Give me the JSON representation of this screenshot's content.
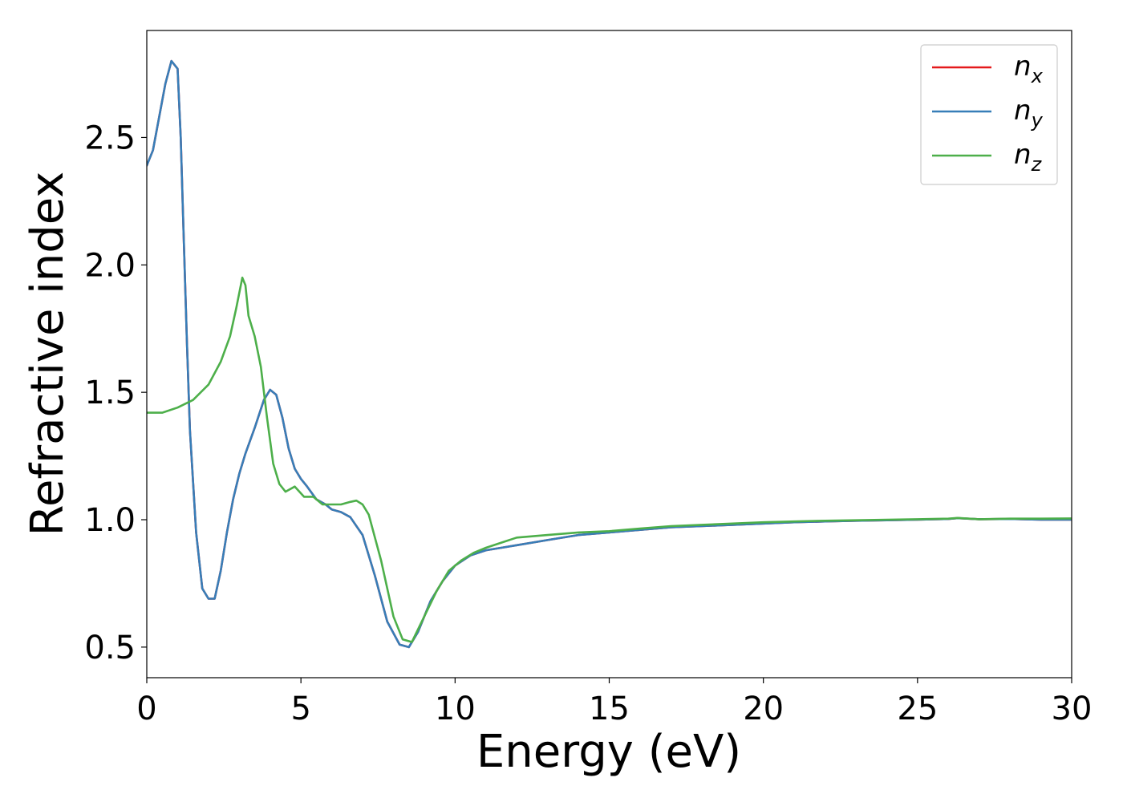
{
  "chart_data": {
    "type": "line",
    "title": "",
    "xlabel": "Energy (eV)",
    "ylabel": "Refractive index",
    "xlim": [
      0,
      30
    ],
    "ylim": [
      0.38,
      2.92
    ],
    "xticks": [
      0,
      5,
      10,
      15,
      20,
      25,
      30
    ],
    "xtick_labels": [
      "0",
      "5",
      "10",
      "15",
      "20",
      "25",
      "30"
    ],
    "yticks": [
      0.5,
      1.0,
      1.5,
      2.0,
      2.5
    ],
    "ytick_labels": [
      "0.5",
      "1.0",
      "1.5",
      "2.0",
      "2.5"
    ],
    "grid": false,
    "legend_position": "top-right",
    "series": [
      {
        "name": "n",
        "subscript": "x",
        "color": "#e41a1c",
        "x": [
          0,
          0.2,
          0.4,
          0.6,
          0.8,
          1.0,
          1.1,
          1.2,
          1.3,
          1.4,
          1.6,
          1.8,
          2.0,
          2.2,
          2.4,
          2.6,
          2.8,
          3.0,
          3.2,
          3.5,
          3.8,
          4.0,
          4.2,
          4.4,
          4.6,
          4.8,
          5.0,
          5.2,
          5.5,
          5.8,
          6.0,
          6.3,
          6.6,
          7.0,
          7.4,
          7.8,
          8.2,
          8.5,
          8.8,
          9.2,
          9.6,
          10.0,
          10.5,
          11.0,
          11.5,
          12.0,
          13.0,
          14.0,
          15.0,
          16.0,
          17.0,
          18.0,
          19.0,
          20.0,
          21.0,
          22.0,
          23.0,
          24.0,
          25.0,
          26.0,
          26.3,
          27.0,
          28.0,
          29.0,
          30.0
        ],
        "y": [
          2.39,
          2.45,
          2.58,
          2.71,
          2.8,
          2.77,
          2.5,
          2.1,
          1.7,
          1.35,
          0.95,
          0.73,
          0.69,
          0.69,
          0.8,
          0.95,
          1.08,
          1.18,
          1.26,
          1.36,
          1.47,
          1.51,
          1.49,
          1.4,
          1.28,
          1.2,
          1.16,
          1.13,
          1.08,
          1.06,
          1.04,
          1.03,
          1.01,
          0.94,
          0.78,
          0.6,
          0.51,
          0.5,
          0.56,
          0.68,
          0.76,
          0.82,
          0.86,
          0.88,
          0.89,
          0.9,
          0.92,
          0.94,
          0.95,
          0.96,
          0.97,
          0.975,
          0.98,
          0.985,
          0.99,
          0.993,
          0.996,
          0.998,
          1.0,
          1.003,
          1.006,
          1.002,
          1.003,
          1.0,
          1.0
        ]
      },
      {
        "name": "n",
        "subscript": "y",
        "color": "#377eb8",
        "x": [
          0,
          0.2,
          0.4,
          0.6,
          0.8,
          1.0,
          1.1,
          1.2,
          1.3,
          1.4,
          1.6,
          1.8,
          2.0,
          2.2,
          2.4,
          2.6,
          2.8,
          3.0,
          3.2,
          3.5,
          3.8,
          4.0,
          4.2,
          4.4,
          4.6,
          4.8,
          5.0,
          5.2,
          5.5,
          5.8,
          6.0,
          6.3,
          6.6,
          7.0,
          7.4,
          7.8,
          8.2,
          8.5,
          8.8,
          9.2,
          9.6,
          10.0,
          10.5,
          11.0,
          11.5,
          12.0,
          13.0,
          14.0,
          15.0,
          16.0,
          17.0,
          18.0,
          19.0,
          20.0,
          21.0,
          22.0,
          23.0,
          24.0,
          25.0,
          26.0,
          26.3,
          27.0,
          28.0,
          29.0,
          30.0
        ],
        "y": [
          2.39,
          2.45,
          2.58,
          2.71,
          2.8,
          2.77,
          2.5,
          2.1,
          1.7,
          1.35,
          0.95,
          0.73,
          0.69,
          0.69,
          0.8,
          0.95,
          1.08,
          1.18,
          1.26,
          1.36,
          1.47,
          1.51,
          1.49,
          1.4,
          1.28,
          1.2,
          1.16,
          1.13,
          1.08,
          1.06,
          1.04,
          1.03,
          1.01,
          0.94,
          0.78,
          0.6,
          0.51,
          0.5,
          0.56,
          0.68,
          0.76,
          0.82,
          0.86,
          0.88,
          0.89,
          0.9,
          0.92,
          0.94,
          0.95,
          0.96,
          0.97,
          0.975,
          0.98,
          0.985,
          0.99,
          0.993,
          0.996,
          0.998,
          1.0,
          1.003,
          1.006,
          1.002,
          1.003,
          1.0,
          1.0
        ]
      },
      {
        "name": "n",
        "subscript": "z",
        "color": "#4daf4a",
        "x": [
          0,
          0.5,
          1.0,
          1.5,
          2.0,
          2.4,
          2.7,
          2.9,
          3.1,
          3.2,
          3.3,
          3.5,
          3.7,
          3.9,
          4.1,
          4.3,
          4.5,
          4.8,
          5.1,
          5.4,
          5.7,
          6.0,
          6.3,
          6.6,
          6.8,
          7.0,
          7.2,
          7.6,
          8.0,
          8.3,
          8.6,
          9.0,
          9.4,
          9.8,
          10.2,
          10.6,
          11.0,
          11.5,
          12.0,
          13.0,
          14.0,
          15.0,
          16.0,
          17.0,
          18.0,
          19.0,
          20.0,
          21.0,
          22.0,
          23.0,
          24.0,
          25.0,
          26.0,
          26.3,
          27.0,
          28.0,
          29.0,
          30.0
        ],
        "y": [
          1.42,
          1.42,
          1.44,
          1.47,
          1.53,
          1.62,
          1.72,
          1.83,
          1.95,
          1.92,
          1.8,
          1.72,
          1.6,
          1.4,
          1.22,
          1.14,
          1.11,
          1.13,
          1.09,
          1.09,
          1.06,
          1.06,
          1.06,
          1.07,
          1.075,
          1.06,
          1.02,
          0.84,
          0.62,
          0.53,
          0.52,
          0.62,
          0.72,
          0.8,
          0.84,
          0.87,
          0.89,
          0.91,
          0.93,
          0.94,
          0.95,
          0.955,
          0.965,
          0.975,
          0.98,
          0.985,
          0.99,
          0.993,
          0.996,
          0.998,
          1.0,
          1.002,
          1.004,
          1.007,
          1.002,
          1.004,
          1.004,
          1.005
        ]
      }
    ]
  }
}
